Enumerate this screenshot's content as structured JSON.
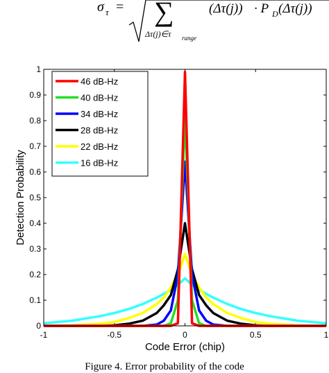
{
  "formula": {
    "lhs": "σ",
    "lhs_sub": "τ",
    "eq": "=",
    "sum": "∑",
    "sum_sub": "Δτ(j)∈τ",
    "sum_sub_sub": "range",
    "term1": "(Δτ(j))",
    "term2": "· P",
    "term2_sub": "D",
    "term3": "(Δτ(j))"
  },
  "chart_data": {
    "type": "line",
    "xlabel": "Code Error (chip)",
    "ylabel": "Detection Probability",
    "x": [
      -1,
      -0.8,
      -0.6,
      -0.5,
      -0.4,
      -0.3,
      -0.2,
      -0.15,
      -0.1,
      -0.05,
      0,
      0.05,
      0.1,
      0.15,
      0.2,
      0.3,
      0.4,
      0.5,
      0.6,
      0.8,
      1
    ],
    "series": [
      {
        "name": "46 dB-Hz",
        "color": "#ff0000",
        "values": [
          0,
          0,
          0,
          0,
          0,
          0,
          0,
          0,
          0,
          0.01,
          0.99,
          0.01,
          0,
          0,
          0,
          0,
          0,
          0,
          0,
          0,
          0
        ]
      },
      {
        "name": "40 dB-Hz",
        "color": "#22e022",
        "values": [
          0,
          0,
          0,
          0,
          0,
          0,
          0,
          0,
          0.01,
          0.1,
          0.82,
          0.1,
          0.01,
          0,
          0,
          0,
          0,
          0,
          0,
          0,
          0
        ]
      },
      {
        "name": "34 dB-Hz",
        "color": "#0000ff",
        "values": [
          0,
          0,
          0,
          0,
          0,
          0,
          0.005,
          0.02,
          0.06,
          0.2,
          0.64,
          0.2,
          0.06,
          0.02,
          0.005,
          0,
          0,
          0,
          0,
          0,
          0
        ]
      },
      {
        "name": "28 dB-Hz",
        "color": "#000000",
        "values": [
          0,
          0,
          0,
          0.002,
          0.008,
          0.02,
          0.05,
          0.08,
          0.12,
          0.22,
          0.4,
          0.22,
          0.12,
          0.08,
          0.05,
          0.02,
          0.008,
          0.002,
          0,
          0,
          0
        ]
      },
      {
        "name": "22 dB-Hz",
        "color": "#ffff00",
        "values": [
          0,
          0.002,
          0.008,
          0.015,
          0.03,
          0.05,
          0.085,
          0.11,
          0.15,
          0.2,
          0.28,
          0.2,
          0.15,
          0.11,
          0.085,
          0.05,
          0.03,
          0.015,
          0.008,
          0.002,
          0
        ]
      },
      {
        "name": "16 dB-Hz",
        "color": "#33ffff",
        "values": [
          0.01,
          0.02,
          0.038,
          0.05,
          0.065,
          0.085,
          0.11,
          0.125,
          0.14,
          0.16,
          0.185,
          0.16,
          0.14,
          0.125,
          0.11,
          0.085,
          0.065,
          0.05,
          0.038,
          0.02,
          0.01
        ]
      }
    ],
    "xlim": [
      -1,
      1
    ],
    "xticks": [
      -1,
      -0.5,
      0,
      0.5,
      1
    ],
    "ylim": [
      0,
      1
    ],
    "yticks": [
      0,
      0.1,
      0.2,
      0.3,
      0.4,
      0.5,
      0.6,
      0.7,
      0.8,
      0.9,
      1
    ],
    "legend": "upper-left"
  },
  "caption": "Figure 4. Error probability of the code"
}
